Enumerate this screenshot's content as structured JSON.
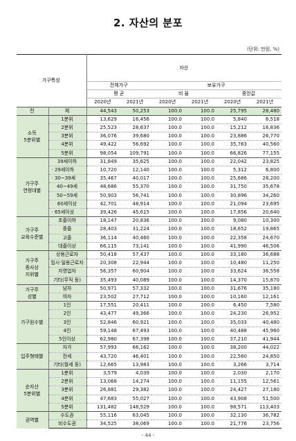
{
  "title": "2. 자산의 분포",
  "unit": "(단위: 만원, %)",
  "header": {
    "row_label": "가구특성",
    "asset": "자산",
    "all_households": "전체가구",
    "owning_households": "보유가구",
    "mean": "평 균",
    "ratio": "비 율",
    "median": "중앙값",
    "years": [
      "2020년",
      "2021년",
      "2020년",
      "2021년",
      "2020년",
      "2021년"
    ]
  },
  "total_row": {
    "category": "전",
    "sub": "체",
    "values": [
      "44,543",
      "50,253",
      "100.0",
      "100.0",
      "25,795",
      "28,480"
    ]
  },
  "groups": [
    {
      "category": "소득\n5분위별",
      "rows": [
        {
          "label": "1분위",
          "values": [
            "13,629",
            "16,456",
            "100.0",
            "100.0",
            "5,840",
            "6,518"
          ]
        },
        {
          "label": "2분위",
          "values": [
            "25,523",
            "28,637",
            "100.0",
            "100.0",
            "15,212",
            "16,836"
          ]
        },
        {
          "label": "3분위",
          "values": [
            "36,076",
            "39,680",
            "100.0",
            "100.0",
            "23,886",
            "26,770"
          ]
        },
        {
          "label": "4분위",
          "values": [
            "49,422",
            "56,692",
            "100.0",
            "100.0",
            "35,763",
            "40,560"
          ]
        },
        {
          "label": "5분위",
          "values": [
            "98,054",
            "109,791",
            "100.0",
            "100.0",
            "66,826",
            "77,155"
          ]
        }
      ]
    },
    {
      "category": "가구주\n연령대별",
      "rows": [
        {
          "label": "39세이하",
          "values": [
            "31,849",
            "35,625",
            "100.0",
            "100.0",
            "22,042",
            "23,825"
          ]
        },
        {
          "label": "· 29세이하",
          "values": [
            "10,720",
            "12,140",
            "100.0",
            "100.0",
            "5,312",
            "6,800"
          ]
        },
        {
          "label": "· 30~39세",
          "values": [
            "35,467",
            "40,017",
            "100.0",
            "100.0",
            "25,686",
            "28,200"
          ]
        },
        {
          "label": "40~49세",
          "values": [
            "48,686",
            "55,370",
            "100.0",
            "100.0",
            "31,750",
            "35,678"
          ]
        },
        {
          "label": "50~59세",
          "values": [
            "50,903",
            "56,741",
            "100.0",
            "100.0",
            "30,896",
            "34,260"
          ]
        },
        {
          "label": "60세이상",
          "values": [
            "42,701",
            "48,914",
            "100.0",
            "100.0",
            "21,094",
            "23,695"
          ]
        },
        {
          "label": "· 65세이상",
          "values": [
            "39,426",
            "45,615",
            "100.0",
            "100.0",
            "17,856",
            "20,640"
          ]
        }
      ]
    },
    {
      "category": "가구주\n교육수준별",
      "rows": [
        {
          "label": "초졸이하",
          "values": [
            "18,147",
            "20,836",
            "100.0",
            "100.0",
            "9,080",
            "10,300"
          ]
        },
        {
          "label": "중졸",
          "values": [
            "28,403",
            "31,224",
            "100.0",
            "100.0",
            "18,652",
            "19,865"
          ]
        },
        {
          "label": "고졸",
          "values": [
            "36,114",
            "40,460",
            "100.0",
            "100.0",
            "22,358",
            "24,670"
          ]
        },
        {
          "label": "대졸이상",
          "values": [
            "66,115",
            "73,141",
            "100.0",
            "100.0",
            "41,990",
            "46,506"
          ]
        }
      ]
    },
    {
      "category": "가구주\n종사상\n지위별",
      "rows": [
        {
          "label": "상용근로자",
          "values": [
            "50,418",
            "57,437",
            "100.0",
            "100.0",
            "33,180",
            "36,688"
          ]
        },
        {
          "label": "임시·일용근로자",
          "values": [
            "20,308",
            "22,944",
            "100.0",
            "100.0",
            "10,480",
            "11,250"
          ]
        },
        {
          "label": "자영업자",
          "values": [
            "56,357",
            "60,904",
            "100.0",
            "100.0",
            "33,624",
            "36,558"
          ]
        },
        {
          "label": "기타(무직 등)",
          "values": [
            "35,493",
            "40,089",
            "100.0",
            "100.0",
            "14,370",
            "15,870"
          ]
        }
      ]
    },
    {
      "category": "가구주\n성별",
      "rows": [
        {
          "label": "남자",
          "values": [
            "50,971",
            "57,332",
            "100.0",
            "100.0",
            "31,676",
            "35,180"
          ]
        },
        {
          "label": "여자",
          "values": [
            "23,502",
            "27,712",
            "100.0",
            "100.0",
            "10,160",
            "12,161"
          ]
        }
      ]
    },
    {
      "category": "가구원수별",
      "rows": [
        {
          "label": "1인",
          "values": [
            "17,551",
            "20,411",
            "100.0",
            "100.0",
            "6,450",
            "7,580"
          ]
        },
        {
          "label": "2인",
          "values": [
            "43,477",
            "49,366",
            "100.0",
            "100.0",
            "24,230",
            "26,952"
          ]
        },
        {
          "label": "3인",
          "values": [
            "52,846",
            "60,921",
            "100.0",
            "100.0",
            "35,033",
            "40,480"
          ]
        },
        {
          "label": "4인",
          "values": [
            "59,148",
            "67,493",
            "100.0",
            "100.0",
            "40,488",
            "45,960"
          ]
        },
        {
          "label": "5인이상",
          "values": [
            "62,980",
            "67,398",
            "100.0",
            "100.0",
            "37,210",
            "41,944"
          ]
        }
      ]
    },
    {
      "category": "입주형태별",
      "rows": [
        {
          "label": "자가",
          "values": [
            "57,993",
            "66,162",
            "100.0",
            "100.0",
            "38,200",
            "44,022"
          ]
        },
        {
          "label": "전세",
          "values": [
            "43,720",
            "46,401",
            "100.0",
            "100.0",
            "22,560",
            "24,850"
          ]
        },
        {
          "label": "기타(월세 등)",
          "values": [
            "12,665",
            "13,983",
            "100.0",
            "100.0",
            "3,266",
            "3,714"
          ]
        }
      ]
    },
    {
      "category": "순자산\n5분위별",
      "rows": [
        {
          "label": "1분위",
          "values": [
            "3,579",
            "4,039",
            "100.0",
            "100.0",
            "2,030",
            "2,170"
          ]
        },
        {
          "label": "2분위",
          "values": [
            "13,068",
            "14,274",
            "100.0",
            "100.0",
            "11,155",
            "12,561"
          ]
        },
        {
          "label": "3분위",
          "values": [
            "26,881",
            "29,382",
            "100.0",
            "100.0",
            "24,427",
            "27,180"
          ]
        },
        {
          "label": "4분위",
          "values": [
            "47,683",
            "55,027",
            "100.0",
            "100.0",
            "43,908",
            "51,500"
          ]
        },
        {
          "label": "5분위",
          "values": [
            "131,482",
            "148,529",
            "100.0",
            "100.0",
            "98,571",
            "113,403"
          ]
        }
      ]
    },
    {
      "category": "권역별",
      "rows": [
        {
          "label": "수도권",
          "values": [
            "55,116",
            "63,045",
            "100.0",
            "100.0",
            "32,130",
            "36,782"
          ]
        },
        {
          "label": "비수도권",
          "values": [
            "34,525",
            "38,069",
            "100.0",
            "100.0",
            "21,776",
            "23,756"
          ]
        }
      ]
    }
  ],
  "page_number": "- 44 -"
}
